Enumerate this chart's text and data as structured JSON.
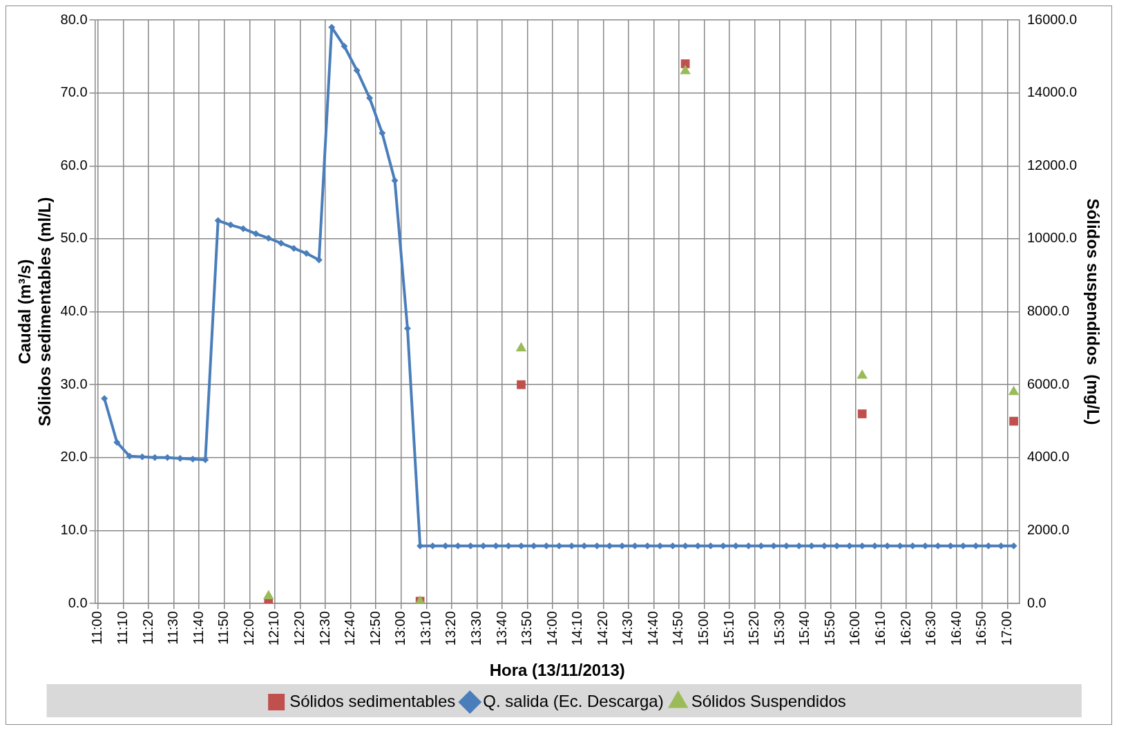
{
  "chart_data": {
    "type": "line",
    "xlabel": "Hora (13/11/2013)",
    "ylabel": "Caudal (m³/s)\nSólidos sedimentables (ml/L)",
    "y2label": "Sólidos suspendidos  (mg/L)",
    "xlim": [
      10.98,
      17.08
    ],
    "xticks": [
      {
        "value": 11,
        "label": "11:00"
      },
      {
        "value": 11.1667,
        "label": "11:10"
      },
      {
        "value": 11.3333,
        "label": "11:20"
      },
      {
        "value": 11.5,
        "label": "11:30"
      },
      {
        "value": 11.6667,
        "label": "11:40"
      },
      {
        "value": 11.8333,
        "label": "11:50"
      },
      {
        "value": 12,
        "label": "12:00"
      },
      {
        "value": 12.1667,
        "label": "12:10"
      },
      {
        "value": 12.3333,
        "label": "12:20"
      },
      {
        "value": 12.5,
        "label": "12:30"
      },
      {
        "value": 12.6667,
        "label": "12:40"
      },
      {
        "value": 12.8333,
        "label": "12:50"
      },
      {
        "value": 13,
        "label": "13:00"
      },
      {
        "value": 13.1667,
        "label": "13:10"
      },
      {
        "value": 13.3333,
        "label": "13:20"
      },
      {
        "value": 13.5,
        "label": "13:30"
      },
      {
        "value": 13.6667,
        "label": "13:40"
      },
      {
        "value": 13.8333,
        "label": "13:50"
      },
      {
        "value": 14,
        "label": "14:00"
      },
      {
        "value": 14.1667,
        "label": "14:10"
      },
      {
        "value": 14.3333,
        "label": "14:20"
      },
      {
        "value": 14.5,
        "label": "14:30"
      },
      {
        "value": 14.6667,
        "label": "14:40"
      },
      {
        "value": 14.8333,
        "label": "14:50"
      },
      {
        "value": 15,
        "label": "15:00"
      },
      {
        "value": 15.1667,
        "label": "15:10"
      },
      {
        "value": 15.3333,
        "label": "15:20"
      },
      {
        "value": 15.5,
        "label": "15:30"
      },
      {
        "value": 15.6667,
        "label": "15:40"
      },
      {
        "value": 15.8333,
        "label": "15:50"
      },
      {
        "value": 16,
        "label": "16:00"
      },
      {
        "value": 16.1667,
        "label": "16:10"
      },
      {
        "value": 16.3333,
        "label": "16:20"
      },
      {
        "value": 16.5,
        "label": "16:30"
      },
      {
        "value": 16.6667,
        "label": "16:40"
      },
      {
        "value": 16.8333,
        "label": "16:50"
      },
      {
        "value": 17,
        "label": "17:00"
      }
    ],
    "ylim": [
      0,
      80
    ],
    "yticks": [
      {
        "value": 0,
        "label": "0.0"
      },
      {
        "value": 10,
        "label": "10.0"
      },
      {
        "value": 20,
        "label": "20.0"
      },
      {
        "value": 30,
        "label": "30.0"
      },
      {
        "value": 40,
        "label": "40.0"
      },
      {
        "value": 50,
        "label": "50.0"
      },
      {
        "value": 60,
        "label": "60.0"
      },
      {
        "value": 70,
        "label": "70.0"
      },
      {
        "value": 80,
        "label": "80.0"
      }
    ],
    "y2lim": [
      0,
      16000
    ],
    "y2ticks": [
      {
        "value": 0,
        "label": "0.0"
      },
      {
        "value": 2000,
        "label": "2000.0"
      },
      {
        "value": 4000,
        "label": "4000.0"
      },
      {
        "value": 6000,
        "label": "6000.0"
      },
      {
        "value": 8000,
        "label": "8000.0"
      },
      {
        "value": 10000,
        "label": "10000.0"
      },
      {
        "value": 12000,
        "label": "12000.0"
      },
      {
        "value": 14000,
        "label": "14000.0"
      },
      {
        "value": 16000,
        "label": "16000.0"
      }
    ],
    "grid": true,
    "legend": "bottom",
    "series": [
      {
        "name": "Sólidos sedimentables",
        "type": "scatter",
        "color": "#c0504d",
        "marker": "square",
        "x": [
          12.125,
          13.125,
          13.792,
          14.875,
          16.042,
          17.042
        ],
        "values": [
          0,
          0.3,
          30,
          74,
          26,
          25
        ]
      },
      {
        "name": "Q. salida (Ec. Descarga)",
        "type": "line",
        "color": "#4a7ebb",
        "marker": "diamond",
        "x": [
          11.042,
          11.125,
          11.208,
          11.292,
          11.375,
          11.458,
          11.542,
          11.625,
          11.708,
          11.792,
          11.875,
          11.958,
          12.042,
          12.125,
          12.208,
          12.292,
          12.375,
          12.458,
          12.542,
          12.625,
          12.708,
          12.792,
          12.875,
          12.958,
          13.042,
          13.125,
          13.208,
          13.292,
          13.375,
          13.458,
          13.542,
          13.625,
          13.708,
          13.792,
          13.875,
          13.958,
          14.042,
          14.125,
          14.208,
          14.292,
          14.375,
          14.458,
          14.542,
          14.625,
          14.708,
          14.792,
          14.875,
          14.958,
          15.042,
          15.125,
          15.208,
          15.292,
          15.375,
          15.458,
          15.542,
          15.625,
          15.708,
          15.792,
          15.875,
          15.958,
          16.042,
          16.125,
          16.208,
          16.292,
          16.375,
          16.458,
          16.542,
          16.625,
          16.708,
          16.792,
          16.875,
          16.958,
          17.042
        ],
        "values": [
          28.1,
          22.1,
          20.2,
          20.1,
          20.0,
          20.0,
          19.9,
          19.8,
          19.7,
          52.5,
          51.9,
          51.4,
          50.7,
          50.1,
          49.4,
          48.7,
          48.0,
          47.1,
          79.0,
          76.4,
          73.1,
          69.3,
          64.5,
          58.0,
          37.7,
          7.9,
          7.9,
          7.9,
          7.9,
          7.9,
          7.9,
          7.9,
          7.9,
          7.9,
          7.9,
          7.9,
          7.9,
          7.9,
          7.9,
          7.9,
          7.9,
          7.9,
          7.9,
          7.9,
          7.9,
          7.9,
          7.9,
          7.9,
          7.9,
          7.9,
          7.9,
          7.9,
          7.9,
          7.9,
          7.9,
          7.9,
          7.9,
          7.9,
          7.9,
          7.9,
          7.9,
          7.9,
          7.9,
          7.9,
          7.9,
          7.9,
          7.9,
          7.9,
          7.9,
          7.9,
          7.9,
          7.9,
          7.9
        ]
      },
      {
        "name": "Sólidos Suspendidos",
        "type": "scatter",
        "axis": "y2",
        "color": "#9bbb59",
        "marker": "triangle",
        "x": [
          12.125,
          13.125,
          13.792,
          14.875,
          16.042,
          17.042
        ],
        "values": [
          200,
          50,
          7000,
          14600,
          6250,
          5800
        ]
      }
    ]
  }
}
